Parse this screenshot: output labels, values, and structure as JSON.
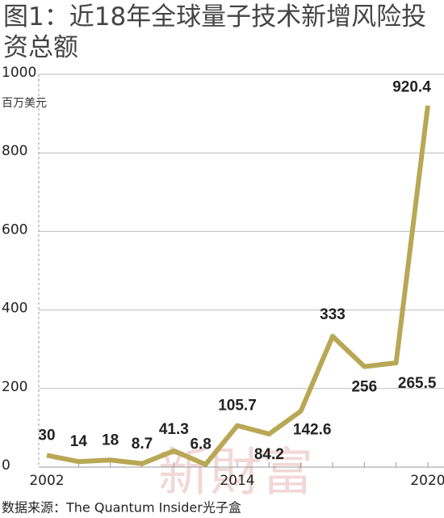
{
  "chart_data": {
    "type": "line",
    "title": "图1：近18年全球量子技术新增风险投资总额",
    "y_unit": "百万美元",
    "source": "数据来源：The Quantum Insider光子盒",
    "watermark": "新財富",
    "categories": [
      "2002",
      null,
      null,
      null,
      null,
      null,
      "2014",
      null,
      null,
      null,
      null,
      null,
      "2020"
    ],
    "values": [
      30,
      14,
      18,
      8.7,
      41.3,
      6.8,
      105.7,
      84.2,
      142.6,
      333,
      256,
      265.5,
      920.4
    ],
    "color": "#b8a755",
    "ylim": [
      0,
      1000
    ],
    "yticks": [
      0,
      200,
      400,
      600,
      800,
      1000
    ],
    "grid": true
  }
}
